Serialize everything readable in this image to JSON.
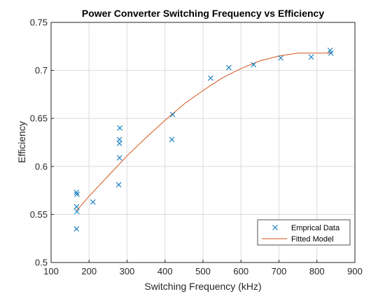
{
  "chart_data": {
    "type": "scatter",
    "title": "Power Converter Switching Frequency vs Efficiency",
    "xlabel": "Switching Frequency (kHz)",
    "ylabel": "Efficiency",
    "xlim": [
      100,
      900
    ],
    "ylim": [
      0.5,
      0.75
    ],
    "xticks": [
      100,
      200,
      300,
      400,
      500,
      600,
      700,
      800,
      900
    ],
    "yticks": [
      0.5,
      0.55,
      0.6,
      0.65,
      0.7,
      0.75
    ],
    "ytick_labels": [
      "0.5",
      "0.55",
      "0.6",
      "0.65",
      "0.7",
      "0.75"
    ],
    "grid": true,
    "legend_position": "bottom-right",
    "series": [
      {
        "name": "Emprical Data",
        "kind": "scatter",
        "marker": "x",
        "color": "#0072BD",
        "x": [
          167,
          168,
          167,
          168,
          167,
          210,
          278,
          280,
          280,
          280,
          281,
          418,
          420,
          520,
          568,
          633,
          705,
          785,
          835,
          837
        ],
        "y": [
          0.535,
          0.553,
          0.558,
          0.571,
          0.573,
          0.563,
          0.581,
          0.609,
          0.624,
          0.628,
          0.64,
          0.628,
          0.654,
          0.692,
          0.703,
          0.706,
          0.713,
          0.714,
          0.721,
          0.718
        ]
      },
      {
        "name": "Fitted Model",
        "kind": "line",
        "color": "#D95319",
        "x": [
          167,
          200,
          250,
          300,
          350,
          400,
          450,
          500,
          550,
          600,
          650,
          700,
          750,
          800,
          837
        ],
        "y": [
          0.554,
          0.569,
          0.59,
          0.611,
          0.63,
          0.648,
          0.665,
          0.679,
          0.692,
          0.702,
          0.71,
          0.715,
          0.718,
          0.718,
          0.718
        ]
      }
    ]
  }
}
